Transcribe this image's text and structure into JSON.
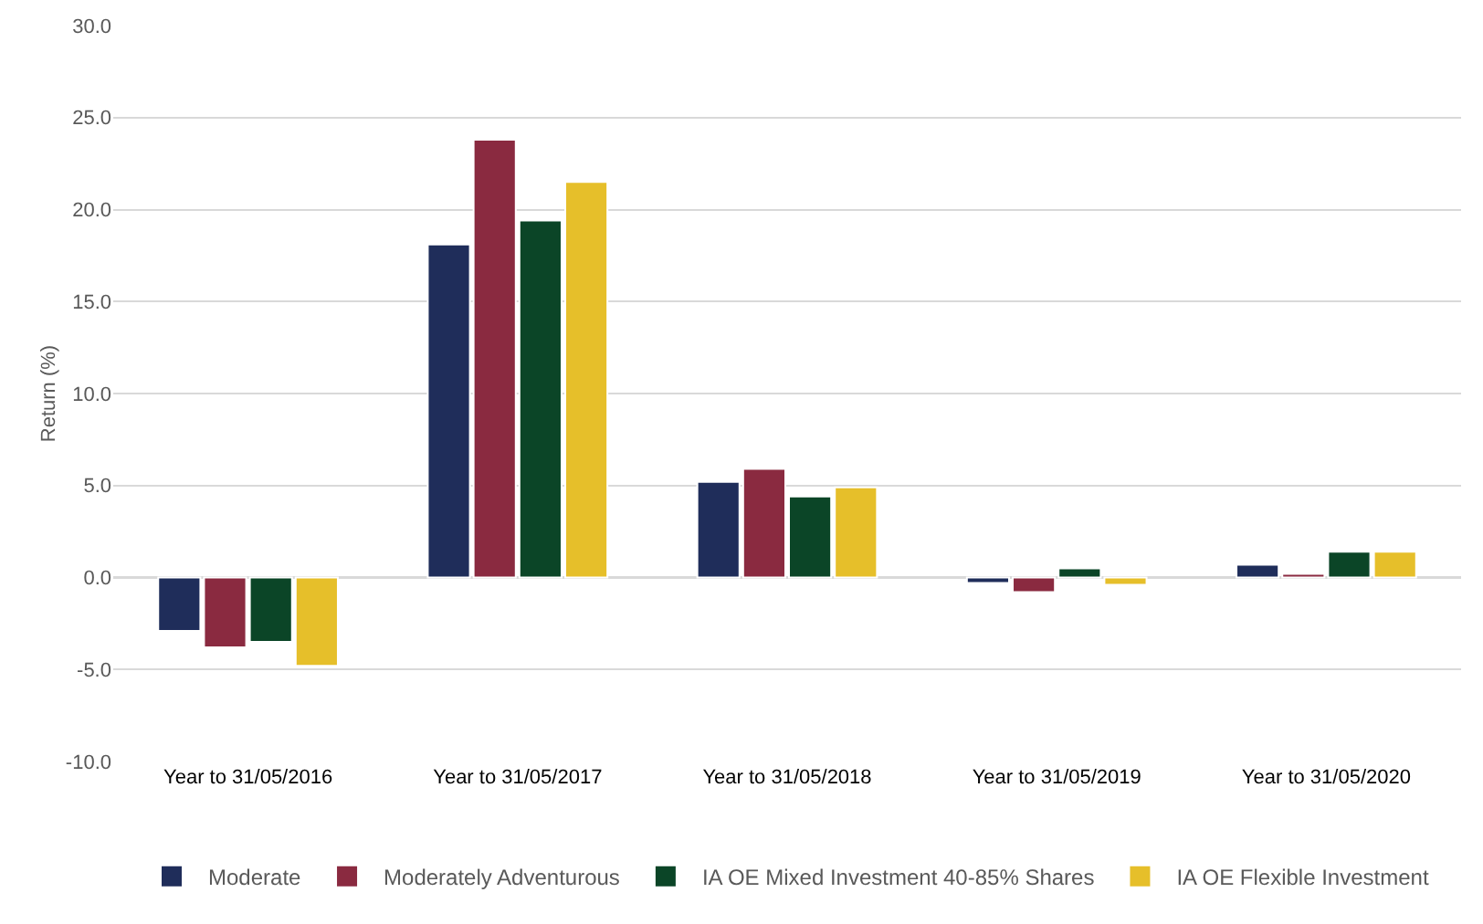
{
  "chart_data": {
    "type": "bar",
    "ylabel": "Return (%)",
    "categories": [
      "Year to 31/05/2016",
      "Year to 31/05/2017",
      "Year to 31/05/2018",
      "Year to 31/05/2019",
      "Year to 31/05/2020"
    ],
    "series": [
      {
        "name": "Moderate",
        "color": "#1f2d5a",
        "values": [
          -2.9,
          18.1,
          5.2,
          -0.3,
          0.7
        ]
      },
      {
        "name": "Moderately Adventurous",
        "color": "#8a2a40",
        "values": [
          -3.8,
          23.8,
          5.9,
          -0.8,
          0.2
        ]
      },
      {
        "name": "IA OE Mixed Investment 40-85% Shares",
        "color": "#0b4527",
        "values": [
          -3.5,
          19.4,
          4.4,
          0.5,
          1.4
        ]
      },
      {
        "name": "IA OE Flexible Investment",
        "color": "#e6bf2a",
        "values": [
          -4.8,
          21.5,
          4.9,
          -0.4,
          1.4
        ]
      }
    ],
    "ylim": [
      -10,
      30
    ],
    "yticks": [
      {
        "value": -10,
        "label": "-10.0"
      },
      {
        "value": -5,
        "label": "-5.0"
      },
      {
        "value": 0,
        "label": "0.0"
      },
      {
        "value": 5,
        "label": "5.0"
      },
      {
        "value": 10,
        "label": "10.0"
      },
      {
        "value": 15,
        "label": "15.0"
      },
      {
        "value": 20,
        "label": "20.0"
      },
      {
        "value": 25,
        "label": "25.0"
      },
      {
        "value": 30,
        "label": "30.0"
      }
    ],
    "grid": "y",
    "legend": "bottom"
  }
}
